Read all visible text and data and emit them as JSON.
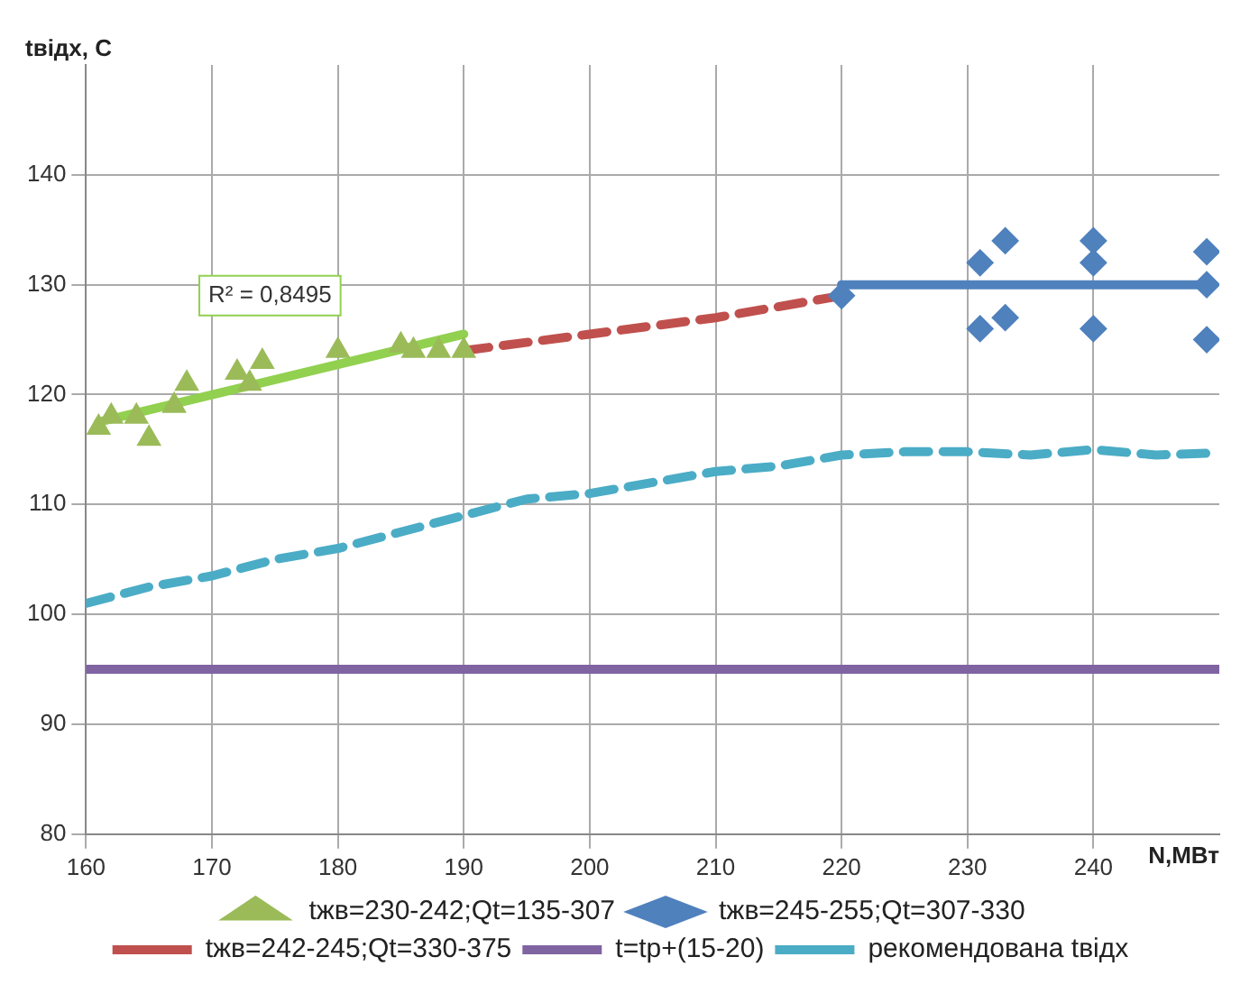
{
  "chart_data": {
    "type": "scatter",
    "xlabel": "N,МВт",
    "ylabel": "tвідх, С",
    "xlim": [
      160,
      250
    ],
    "ylim": [
      80,
      150
    ],
    "xticks": [
      160,
      170,
      180,
      190,
      200,
      210,
      220,
      230,
      240
    ],
    "yticks": [
      80,
      90,
      100,
      110,
      120,
      130,
      140
    ],
    "grid": true,
    "legend": "bottom",
    "annotations": [
      "R² = 0,8495"
    ],
    "series": [
      {
        "name": "tжв=230-242;Qt=135-307",
        "type": "scatter",
        "marker": "triangle",
        "color": "#9bbb59",
        "x": [
          161,
          162,
          164,
          165,
          167,
          168,
          172,
          173,
          174,
          180,
          185,
          186,
          188,
          190
        ],
        "values": [
          117,
          118,
          118,
          116,
          119,
          121,
          122,
          121,
          123,
          124,
          124.5,
          124,
          124,
          124
        ]
      },
      {
        "name": "tжв=245-255;Qt=307-330",
        "type": "scatter",
        "marker": "diamond",
        "color": "#4f81bd",
        "x": [
          220,
          231,
          231,
          233,
          233,
          240,
          240,
          240,
          249,
          249,
          249
        ],
        "values": [
          129,
          132,
          126,
          134,
          127,
          134,
          132,
          126,
          133,
          130,
          125
        ]
      },
      {
        "name": "tжв=242-245;Qt=330-375",
        "type": "line",
        "line_style": "dashed",
        "color": "#c0504d",
        "x": [
          190,
          200,
          210,
          220
        ],
        "values": [
          124,
          125.5,
          127,
          129
        ]
      },
      {
        "name": "t=tp+(15-20)",
        "type": "line",
        "line_style": "solid",
        "color": "#8064a2",
        "x": [
          160,
          250
        ],
        "values": [
          95,
          95
        ]
      },
      {
        "name": "рекомендована tвідх",
        "type": "line",
        "line_style": "dashed",
        "color": "#4bacc6",
        "x": [
          160,
          165,
          170,
          175,
          180,
          185,
          190,
          195,
          200,
          205,
          210,
          215,
          220,
          225,
          230,
          235,
          240,
          245,
          250
        ],
        "values": [
          101,
          102.5,
          103.5,
          105,
          106,
          107.5,
          109,
          110.5,
          111,
          112,
          113,
          113.5,
          114.5,
          114.8,
          114.8,
          114.5,
          115,
          114.5,
          114.7
        ]
      },
      {
        "type": "line",
        "line_style": "solid",
        "color": "#92d050",
        "x": [
          161,
          190
        ],
        "values": [
          117.5,
          125.5
        ]
      },
      {
        "type": "line",
        "line_style": "solid",
        "color": "#4f81bd",
        "x": [
          220,
          249
        ],
        "values": [
          130,
          130
        ]
      }
    ]
  }
}
